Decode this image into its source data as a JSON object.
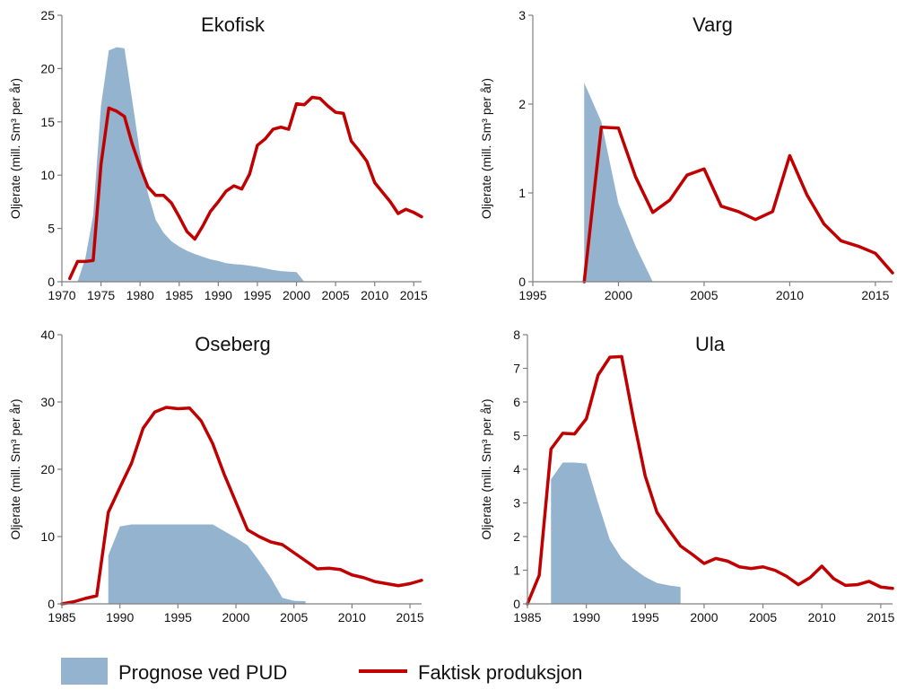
{
  "legend": {
    "forecast_label": "Prognose ved PUD",
    "actual_label": "Faktisk produksjon",
    "forecast_color": "#93b3cf",
    "actual_color": "#c00000"
  },
  "chart_data": [
    {
      "type": "area",
      "title": "Ekofisk",
      "ylabel": "Oljerate (mill. Sm³ per år)",
      "xlim": [
        1970,
        2016
      ],
      "ylim": [
        0,
        25
      ],
      "xticks": [
        1970,
        1975,
        1980,
        1985,
        1990,
        1995,
        2000,
        2005,
        2010,
        2015
      ],
      "yticks": [
        0,
        5,
        10,
        15,
        20,
        25
      ],
      "series": [
        {
          "name": "Prognose ved PUD",
          "kind": "area",
          "x": [
            1972,
            1973,
            1974,
            1975,
            1976,
            1977,
            1978,
            1979,
            1980,
            1981,
            1982,
            1983,
            1984,
            1985,
            1986,
            1987,
            1988,
            1989,
            1990,
            1991,
            1992,
            1993,
            1994,
            1995,
            1996,
            1997,
            1998,
            1999,
            2000,
            2001
          ],
          "y": [
            0,
            2.2,
            6.2,
            16.5,
            21.7,
            22.0,
            21.9,
            17.0,
            12.0,
            8.3,
            5.8,
            4.6,
            3.8,
            3.3,
            2.9,
            2.6,
            2.35,
            2.1,
            1.95,
            1.75,
            1.65,
            1.6,
            1.5,
            1.4,
            1.25,
            1.1,
            1.0,
            0.95,
            0.9,
            0
          ]
        },
        {
          "name": "Faktisk produksjon",
          "kind": "line",
          "x": [
            1971,
            1972,
            1973,
            1974,
            1975,
            1976,
            1977,
            1978,
            1979,
            1980,
            1981,
            1982,
            1983,
            1984,
            1985,
            1986,
            1987,
            1988,
            1989,
            1990,
            1991,
            1992,
            1993,
            1994,
            1995,
            1996,
            1997,
            1998,
            1999,
            2000,
            2001,
            2002,
            2003,
            2004,
            2005,
            2006,
            2007,
            2008,
            2009,
            2010,
            2011,
            2012,
            2013,
            2014,
            2015,
            2016
          ],
          "y": [
            0.3,
            1.9,
            1.9,
            2.0,
            11.0,
            16.3,
            16.0,
            15.5,
            12.9,
            10.8,
            8.9,
            8.1,
            8.1,
            7.4,
            6.1,
            4.7,
            4.0,
            5.2,
            6.6,
            7.5,
            8.5,
            9.0,
            8.7,
            10.1,
            12.8,
            13.4,
            14.3,
            14.5,
            14.3,
            16.7,
            16.6,
            17.3,
            17.2,
            16.5,
            15.9,
            15.8,
            13.2,
            12.3,
            11.3,
            9.3,
            8.4,
            7.5,
            6.4,
            6.8,
            6.5,
            6.1
          ]
        }
      ]
    },
    {
      "type": "area",
      "title": "Varg",
      "ylabel": "Oljerate (mill. Sm³ per år)",
      "xlim": [
        1995,
        2016
      ],
      "ylim": [
        0,
        3
      ],
      "xticks": [
        1995,
        2000,
        2005,
        2010,
        2015
      ],
      "yticks": [
        0,
        1,
        2,
        3
      ],
      "series": [
        {
          "name": "Prognose ved PUD",
          "kind": "area",
          "x": [
            1998,
            1998,
            1999,
            2000,
            2001,
            2002
          ],
          "y": [
            0,
            2.24,
            1.8,
            0.88,
            0.4,
            0
          ]
        },
        {
          "name": "Faktisk produksjon",
          "kind": "line",
          "x": [
            1998,
            1999,
            2000,
            2001,
            2002,
            2003,
            2004,
            2005,
            2006,
            2007,
            2008,
            2009,
            2010,
            2011,
            2012,
            2013,
            2014,
            2015,
            2016
          ],
          "y": [
            0,
            1.74,
            1.73,
            1.18,
            0.78,
            0.92,
            1.2,
            1.27,
            0.85,
            0.79,
            0.7,
            0.79,
            1.42,
            0.98,
            0.65,
            0.46,
            0.4,
            0.32,
            0.1
          ]
        }
      ]
    },
    {
      "type": "area",
      "title": "Oseberg",
      "ylabel": "Oljerate (mill. Sm³ per år)",
      "xlim": [
        1985,
        2016
      ],
      "ylim": [
        0,
        40
      ],
      "xticks": [
        1985,
        1990,
        1995,
        2000,
        2005,
        2010,
        2015
      ],
      "yticks": [
        0,
        10,
        20,
        30,
        40
      ],
      "series": [
        {
          "name": "Prognose ved PUD",
          "kind": "area",
          "x": [
            1989,
            1989,
            1990,
            1991,
            1992,
            1993,
            1994,
            1995,
            1996,
            1997,
            1998,
            1999,
            2000,
            2001,
            2002,
            2003,
            2004,
            2005,
            2006,
            2006
          ],
          "y": [
            0,
            7.2,
            11.5,
            11.8,
            11.8,
            11.8,
            11.8,
            11.8,
            11.8,
            11.8,
            11.8,
            10.8,
            9.8,
            8.7,
            6.4,
            3.9,
            0.9,
            0.45,
            0.4,
            0
          ]
        },
        {
          "name": "Faktisk produksjon",
          "kind": "line",
          "x": [
            1985,
            1986,
            1987,
            1988,
            1989,
            1990,
            1991,
            1992,
            1993,
            1994,
            1995,
            1996,
            1997,
            1998,
            1999,
            2000,
            2001,
            2002,
            2003,
            2004,
            2005,
            2006,
            2007,
            2008,
            2009,
            2010,
            2011,
            2012,
            2013,
            2014,
            2015,
            2016
          ],
          "y": [
            0,
            0.3,
            0.8,
            1.2,
            13.6,
            17.3,
            20.9,
            26.1,
            28.5,
            29.2,
            29.0,
            29.1,
            27.2,
            23.8,
            19.2,
            15.1,
            11.0,
            10.0,
            9.2,
            8.8,
            7.6,
            6.4,
            5.2,
            5.3,
            5.1,
            4.3,
            3.9,
            3.3,
            3.0,
            2.7,
            3.0,
            3.5
          ]
        }
      ]
    },
    {
      "type": "area",
      "title": "Ula",
      "ylabel": "Oljerate (mill. Sm³ per år)",
      "xlim": [
        1985,
        2016
      ],
      "ylim": [
        0,
        8
      ],
      "xticks": [
        1985,
        1990,
        1995,
        2000,
        2005,
        2010,
        2015
      ],
      "yticks": [
        0,
        1,
        2,
        3,
        4,
        5,
        6,
        7,
        8
      ],
      "series": [
        {
          "name": "Prognose ved PUD",
          "kind": "area",
          "x": [
            1987,
            1987,
            1988,
            1989,
            1990,
            1991,
            1992,
            1993,
            1994,
            1995,
            1996,
            1997,
            1998,
            1998
          ],
          "y": [
            0,
            3.7,
            4.2,
            4.2,
            4.17,
            3.0,
            1.9,
            1.35,
            1.05,
            0.8,
            0.62,
            0.55,
            0.5,
            0
          ]
        },
        {
          "name": "Faktisk produksjon",
          "kind": "line",
          "x": [
            1985,
            1986,
            1987,
            1988,
            1989,
            1990,
            1991,
            1992,
            1993,
            1994,
            1995,
            1996,
            1997,
            1998,
            1999,
            2000,
            2001,
            2002,
            2003,
            2004,
            2005,
            2006,
            2007,
            2008,
            2009,
            2010,
            2011,
            2012,
            2013,
            2014,
            2015,
            2016
          ],
          "y": [
            0,
            0.85,
            4.6,
            5.07,
            5.05,
            5.5,
            6.8,
            7.33,
            7.35,
            5.5,
            3.8,
            2.72,
            2.2,
            1.72,
            1.47,
            1.2,
            1.35,
            1.27,
            1.1,
            1.05,
            1.1,
            1.0,
            0.82,
            0.57,
            0.78,
            1.12,
            0.75,
            0.55,
            0.57,
            0.67,
            0.5,
            0.46
          ]
        }
      ]
    }
  ]
}
